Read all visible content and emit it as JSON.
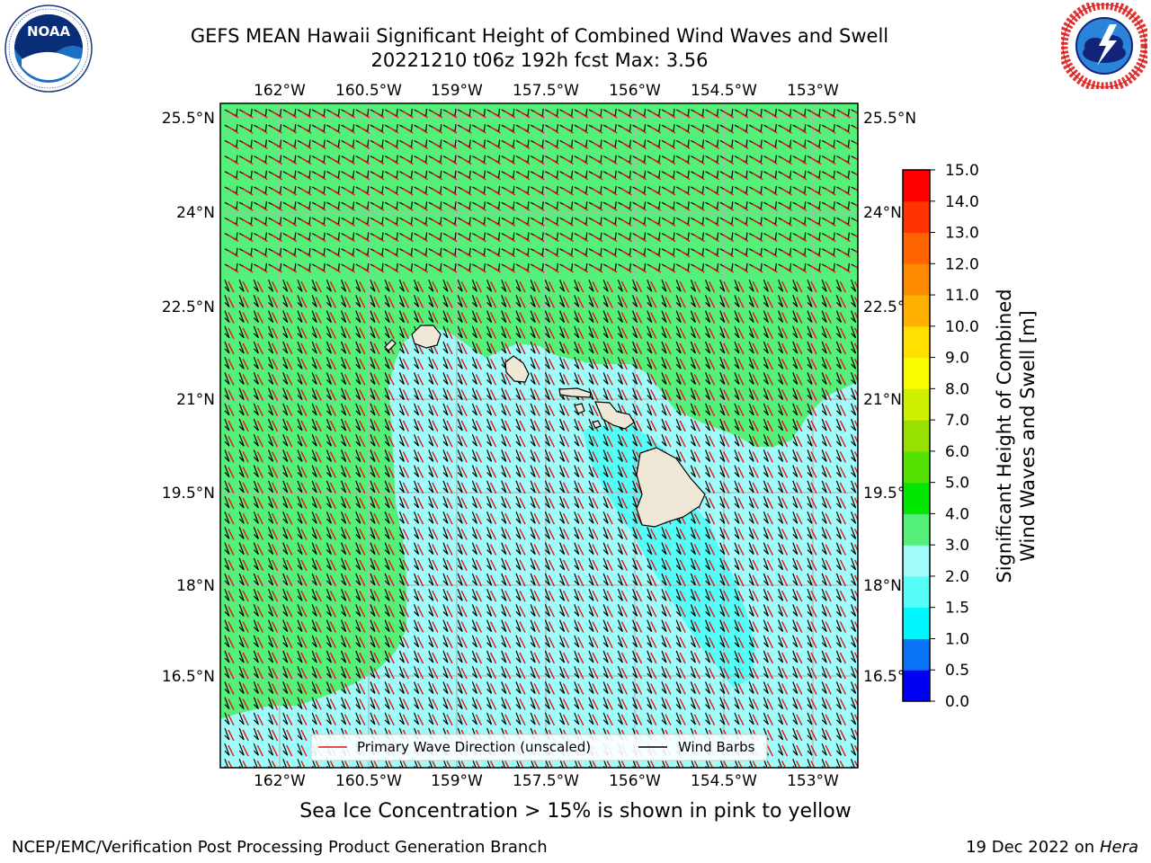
{
  "title": {
    "line1": "GEFS MEAN Hawaii Significant Height of Combined Wind Waves and Swell",
    "line2": "20221210 t06z 192h fcst   Max: 3.56"
  },
  "logos": {
    "left": {
      "name": "NOAA",
      "ring_text": "NATIONAL OCEANIC AND ATMOSPHERIC ADMINISTRATION · U.S. DEPARTMENT OF COMMERCE"
    },
    "right": {
      "name": "NATIONAL WEATHER SERVICE"
    }
  },
  "map": {
    "lon_ticks": [
      "162°W",
      "160.5°W",
      "159°W",
      "157.5°W",
      "156°W",
      "154.5°W",
      "153°W"
    ],
    "lat_ticks": [
      "25.5°N",
      "24°N",
      "22.5°N",
      "21°N",
      "19.5°N",
      "18°N",
      "16.5°N"
    ],
    "lon_range": [
      -163,
      -152.6
    ],
    "lat_range": [
      15.4,
      25.7
    ],
    "colors": {
      "band_3_4": "#55f07a",
      "band_2_3": "#9ffcfa",
      "band_1_5_2": "#55fdf8",
      "land": "#efe8d6",
      "wave_arrow": "#ee1111",
      "barb": "#000000"
    }
  },
  "legend": {
    "wave": "Primary Wave Direction (unscaled)",
    "barbs": "Wind Barbs"
  },
  "colorbar": {
    "label_line1": "Significant Height of Combined",
    "label_line2": "Wind Waves and Swell [m]",
    "ticks": [
      "0.0",
      "0.5",
      "1.0",
      "1.5",
      "2.0",
      "3.0",
      "4.0",
      "5.0",
      "6.0",
      "7.0",
      "8.0",
      "9.0",
      "10.0",
      "11.0",
      "12.0",
      "13.0",
      "14.0",
      "15.0"
    ],
    "colors": [
      "#0000f5",
      "#0a72f6",
      "#00f7fd",
      "#55fdf8",
      "#9ffcfa",
      "#55f07a",
      "#00e600",
      "#54e200",
      "#98e000",
      "#ccf000",
      "#fafa00",
      "#ffe000",
      "#ffb000",
      "#ff8c00",
      "#ff6400",
      "#ff3200",
      "#ff0000"
    ]
  },
  "ice_note": "Sea Ice Concentration > 15% is shown in pink to yellow",
  "footer": {
    "credit": "NCEP/EMC/Verification Post Processing Product Generation Branch",
    "date": "19 Dec 2022 on",
    "host": "Hera"
  }
}
